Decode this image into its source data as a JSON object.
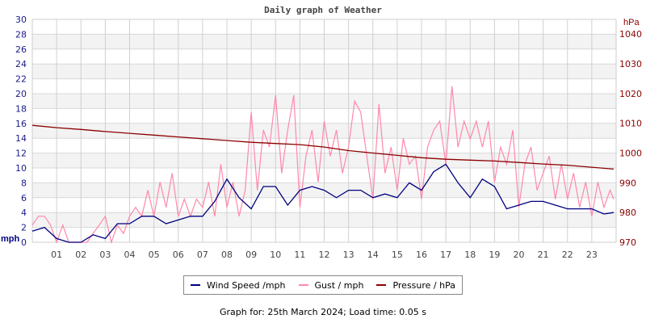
{
  "chart_data": {
    "type": "line",
    "title": "Daily graph of Weather",
    "x_ticks": [
      "01",
      "02",
      "03",
      "04",
      "05",
      "06",
      "07",
      "08",
      "09",
      "10",
      "11",
      "12",
      "13",
      "14",
      "15",
      "16",
      "17",
      "18",
      "19",
      "20",
      "21",
      "22",
      "23"
    ],
    "xlim": [
      0,
      24
    ],
    "left_axis": {
      "label": "mph",
      "ylim": [
        0,
        30
      ],
      "ticks": [
        0,
        2,
        4,
        6,
        8,
        10,
        12,
        14,
        16,
        18,
        20,
        22,
        24,
        26,
        28,
        30
      ],
      "color": "#1a1a8c"
    },
    "right_axis": {
      "label": "hPa",
      "ylim": [
        970,
        1044.9
      ],
      "ticks": [
        970,
        980,
        990,
        1000,
        1010,
        1020,
        1030,
        1040
      ],
      "color": "#8b0000"
    },
    "grid": true,
    "series": [
      {
        "name": "Wind Speed /mph",
        "axis": "left",
        "color": "#000080",
        "x_step_hours": 0.5,
        "values": [
          1.5,
          2,
          0.5,
          0,
          0,
          1,
          0.5,
          2.5,
          2.5,
          3.5,
          3.5,
          2.5,
          3,
          3.5,
          3.5,
          5.5,
          8.5,
          6,
          4.5,
          7.5,
          7.5,
          5,
          7,
          7.5,
          7,
          6,
          7,
          7,
          6,
          6.5,
          6,
          8,
          7,
          9.5,
          10.5,
          8,
          6,
          8.5,
          7.5,
          4.5,
          5,
          5.5,
          5.5,
          5,
          4.5,
          4.5,
          4.5,
          3.8,
          4
        ]
      },
      {
        "name": "Gust / mph",
        "axis": "left",
        "color": "#ff88aa",
        "x_step_hours": 0.25,
        "values": [
          2.3,
          3.5,
          3.5,
          2.3,
          0,
          2.3,
          0,
          0,
          0,
          0,
          1.2,
          2.3,
          3.5,
          0,
          2.3,
          1.2,
          3.5,
          4.7,
          3.5,
          7,
          3.5,
          8.1,
          4.7,
          9.3,
          3.5,
          5.8,
          3.5,
          5.8,
          4.7,
          8.1,
          3.5,
          10.5,
          4.7,
          8.1,
          3.5,
          7,
          17.5,
          7,
          15.1,
          12.8,
          19.8,
          9.3,
          15.1,
          19.8,
          4.7,
          11.6,
          15.1,
          8.1,
          16.3,
          11.6,
          15.1,
          9.3,
          12.8,
          19,
          17.5,
          11.6,
          5.8,
          18.6,
          9.3,
          12.8,
          7,
          14,
          10.5,
          11.6,
          5.8,
          12.8,
          15.1,
          16.3,
          10.5,
          21,
          12.8,
          16.3,
          13.9,
          16.3,
          12.8,
          16.3,
          8.1,
          12.8,
          10.5,
          15.1,
          4.7,
          10.5,
          12.8,
          7,
          9.3,
          11.6,
          5.8,
          10.5,
          5.8,
          9.3,
          4.7,
          8.1,
          3.5,
          8.1,
          4.7,
          7,
          5.8
        ]
      },
      {
        "name": "Pressure / hPa",
        "axis": "right",
        "color": "#8b0000",
        "x_step_hours": 1,
        "values": [
          1009.3,
          1008.5,
          1007.9,
          1007.2,
          1006.6,
          1006.0,
          1005.4,
          1004.8,
          1004.2,
          1003.6,
          1003.2,
          1002.8,
          1002.0,
          1000.8,
          1000.0,
          999.2,
          998.4,
          997.9,
          997.6,
          997.3,
          996.8,
          996.3,
          995.9,
          995.2,
          994.6
        ]
      }
    ]
  },
  "footer": "Graph for: 25th March 2024; Load time: 0.05 s"
}
